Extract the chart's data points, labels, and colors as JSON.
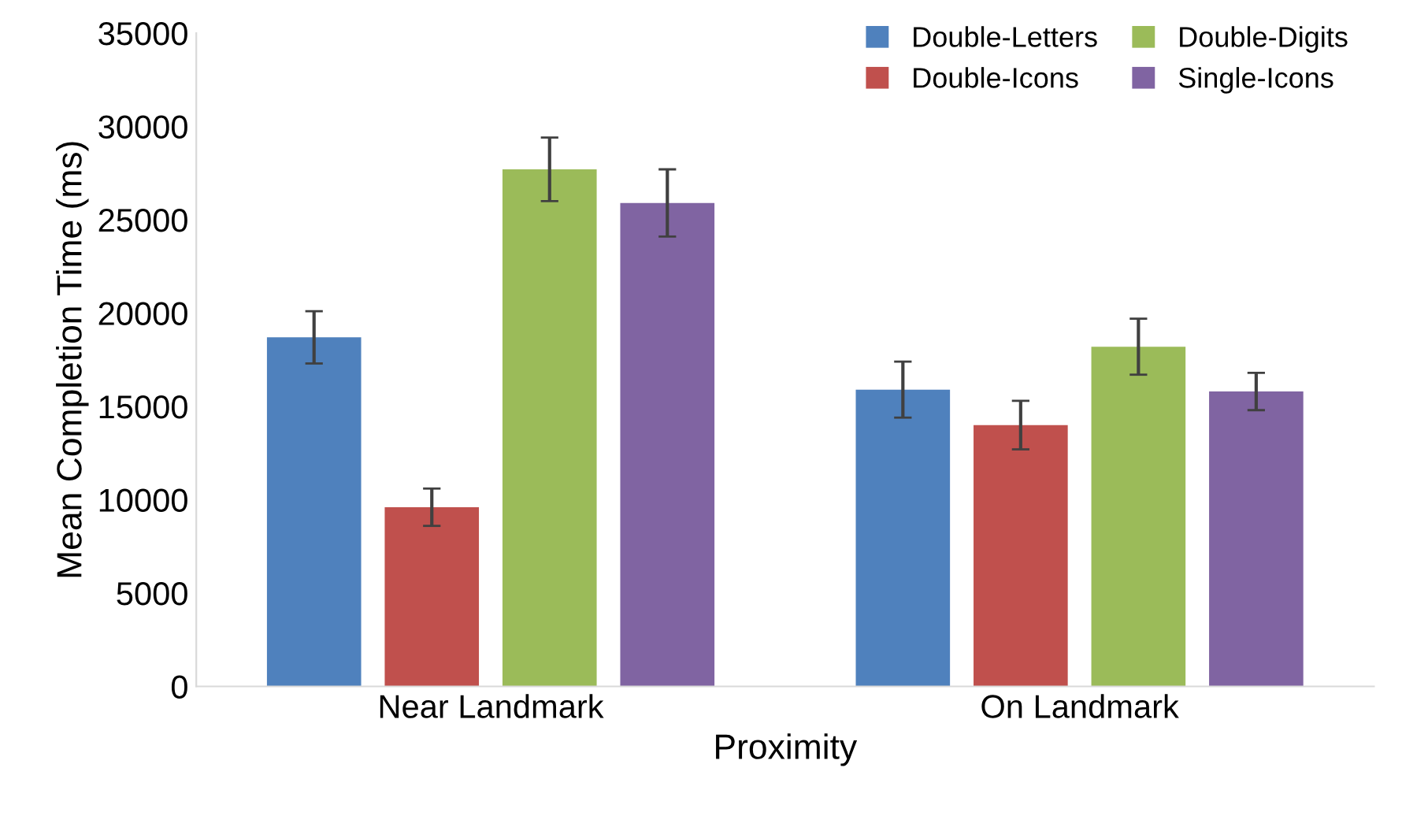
{
  "chart_data": {
    "type": "bar",
    "xlabel": "Proximity",
    "ylabel": "Mean Completion Time (ms)",
    "categories": [
      "Near Landmark",
      "On Landmark"
    ],
    "series": [
      {
        "name": "Double-Letters",
        "color": "#4f81bd",
        "values": [
          18700,
          15900
        ],
        "errors": [
          1400,
          1500
        ]
      },
      {
        "name": "Double-Icons",
        "color": "#c0504d",
        "values": [
          9600,
          14000
        ],
        "errors": [
          1000,
          1300
        ]
      },
      {
        "name": "Double-Digits",
        "color": "#9bbb59",
        "values": [
          27700,
          18200
        ],
        "errors": [
          1700,
          1500
        ]
      },
      {
        "name": "Single-Icons",
        "color": "#8064a2",
        "values": [
          25900,
          15800
        ],
        "errors": [
          1800,
          1000
        ]
      }
    ],
    "ylim": [
      0,
      35000
    ],
    "yticks": [
      0,
      5000,
      10000,
      15000,
      20000,
      25000,
      30000,
      35000
    ],
    "grid": false,
    "legend": "top right"
  }
}
